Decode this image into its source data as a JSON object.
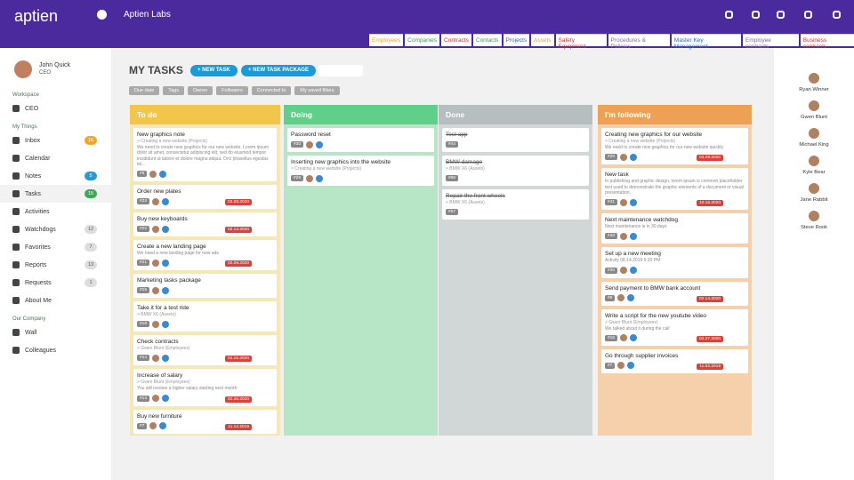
{
  "header": {
    "logo": "aptien",
    "company": "Aptien Labs",
    "tabs": [
      "Employees",
      "Companies",
      "Contracts",
      "Contacts",
      "Projects",
      "Assets",
      "Safety Equipment",
      "Procedures & Policies",
      "Master Key Management",
      "Employee contracts",
      "Business contracts"
    ]
  },
  "user": {
    "name": "John Quick",
    "role": "CEO"
  },
  "sidebar": [
    {
      "title": "Workspace",
      "items": [
        {
          "label": "CEO"
        }
      ]
    },
    {
      "title": "My Things",
      "items": [
        {
          "label": "Inbox",
          "badge": 16
        },
        {
          "label": "Calendar"
        },
        {
          "label": "Notes",
          "badge": 5
        },
        {
          "label": "Tasks",
          "badge": 15
        },
        {
          "label": "Activities"
        },
        {
          "label": "Watchdogs",
          "badge": 12
        },
        {
          "label": "Favorites",
          "badge": 7
        },
        {
          "label": "Reports",
          "badge": 13
        },
        {
          "label": "Requests",
          "badge": 1
        },
        {
          "label": "About Me"
        }
      ]
    },
    {
      "title": "Our Company",
      "items": [
        {
          "label": "Wall"
        },
        {
          "label": "Colleagues"
        }
      ]
    }
  ],
  "page": {
    "title": "MY TASKS",
    "buttons": [
      "+ NEW TASK",
      "+ NEW TASK PACKAGE"
    ],
    "filters": [
      "Due date",
      "Tags",
      "Owner",
      "Followers",
      "Connected to",
      "My saved filters"
    ]
  },
  "columns": [
    {
      "title": "To do",
      "cards": [
        {
          "title": "New graphics note",
          "sub": "> Creating a new website (Projects)",
          "desc": "We need to create new graphics for our new website. Lorem ipsum dolor sit amet, consectetur adipiscing elit, sed do eiusmod tempor incididunt ut labore et dolore magna aliqua. Orci phasellus egestas tel...",
          "id": "#9"
        },
        {
          "title": "Order new plates",
          "id": "#23",
          "date": "02.28.2020"
        },
        {
          "title": "Buy new keyboards",
          "id": "#22",
          "date": "02.14.2020"
        },
        {
          "title": "Create a new landing page",
          "desc": "We need a new landing page for new ads",
          "id": "#21",
          "date": "02.28.2020"
        },
        {
          "title": "Marketing tasks package",
          "id": "#19"
        },
        {
          "title": "Take it for a test ride",
          "sub": "> BMW X6 (Assets)",
          "id": "#18"
        },
        {
          "title": "Check contracts",
          "sub": "> Gwen Blunt (Employees)",
          "id": "#14",
          "date": "02.15.2020"
        },
        {
          "title": "Increase of salary",
          "sub": "> Gwen Blunt (Employees)",
          "desc": "You will receive a higher salary starting next month",
          "id": "#13",
          "date": "02.26.2020"
        },
        {
          "title": "Buy new furniture",
          "id": "#7",
          "date": "11.14.2019"
        }
      ]
    },
    {
      "title": "Doing",
      "cards": [
        {
          "title": "Password reset",
          "id": "#30"
        },
        {
          "title": "Inserting new graphics into the website",
          "sub": "> Creating a new website (Projects)",
          "id": "#29"
        }
      ]
    },
    {
      "title": "Done",
      "cards": [
        {
          "title": "Test app",
          "id": "#44"
        },
        {
          "title": "BMW damage",
          "sub": "> BMW X6 (Assets)",
          "id": "#56"
        },
        {
          "title": "Repair the front wheels",
          "sub": "> BMW X6 (Assets)",
          "id": "#57"
        }
      ]
    },
    {
      "title": "I'm following",
      "cards": [
        {
          "title": "Creating new graphics for our website",
          "sub": "> Creating a new website (Projects)",
          "desc": "We need to create new graphics for our new website quickly",
          "id": "#20",
          "date": "03.29.2020"
        },
        {
          "title": "New task",
          "desc": "In publishing and graphic design, lorem ipsum is common placeholder text used to demonstrate the graphic elements of a document or visual presentation.",
          "id": "#41",
          "date": "10.15.2020"
        },
        {
          "title": "Next maintenance watchdog",
          "desc": "Next maintenance is in 30 days",
          "id": "#40"
        },
        {
          "title": "Set up a new meeting",
          "desc": "Activity 08.14.2019 5:30 PM",
          "id": "#30"
        },
        {
          "title": "Send payment to BMW bank account",
          "id": "#8",
          "date": "02.14.2020"
        },
        {
          "title": "Write a script for the new youtube video",
          "sub": "> Gwen Blunt (Employees)",
          "desc": "We talked about it during the call",
          "id": "#15",
          "date": "02.27.2020"
        },
        {
          "title": "Go through supplier invoices",
          "id": "#7",
          "date": "11.02.2019"
        }
      ]
    }
  ],
  "people": [
    "Ryan Winner",
    "Gwen Blunt",
    "Michael King",
    "Kyle Bear",
    "Jane Rabbit",
    "Steve Rook"
  ]
}
